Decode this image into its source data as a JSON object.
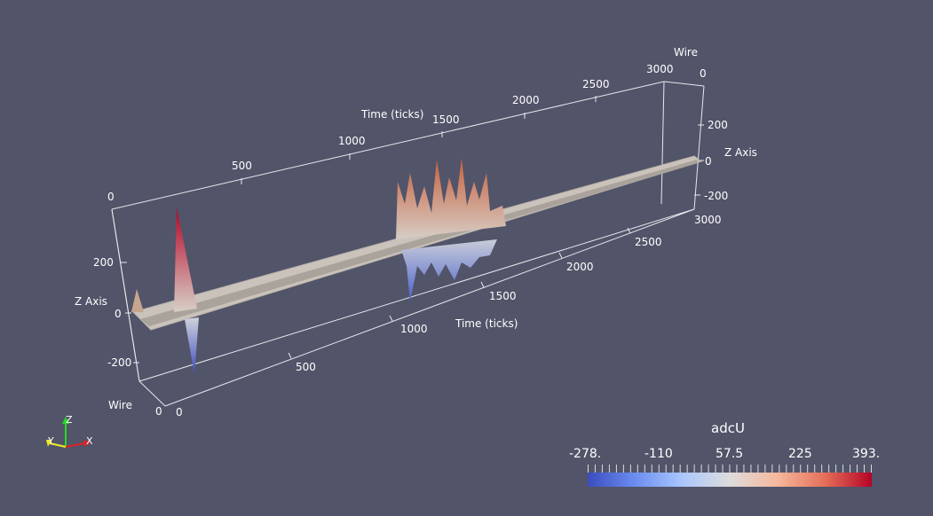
{
  "front_axes": {
    "time_label": "Time (ticks)",
    "z_label": "Z Axis",
    "wire_label": "Wire",
    "time_ticks": [
      "500",
      "1000",
      "1500",
      "2000",
      "2500",
      "3000"
    ],
    "z_ticks": [
      "200",
      "0",
      "-200"
    ],
    "wire_ticks": [
      "0",
      "0"
    ]
  },
  "back_axes": {
    "time_label": "Time (ticks)",
    "z_label": "Z Axis",
    "wire_label": "Wire",
    "time_ticks": [
      "0",
      "500",
      "1000",
      "1500",
      "2000",
      "2500",
      "3000"
    ],
    "z_ticks": [
      "200",
      "0",
      "-200"
    ],
    "wire_tick": "0"
  },
  "orientation": {
    "x": "X",
    "y": "Y",
    "z": "Z"
  },
  "colorbar": {
    "title": "adcU",
    "ticks": [
      "-278.",
      "-110",
      "57.5",
      "225",
      "393."
    ],
    "colors": [
      "#3b4cc0",
      "#dddcdc",
      "#b40426"
    ]
  }
}
